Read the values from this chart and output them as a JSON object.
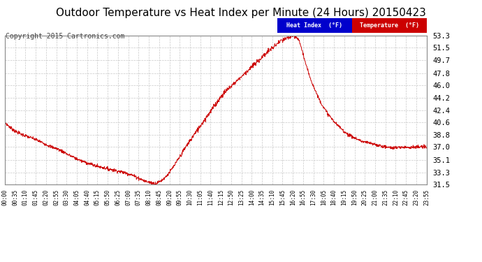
{
  "title": "Outdoor Temperature vs Heat Index per Minute (24 Hours) 20150423",
  "copyright": "Copyright 2015 Cartronics.com",
  "ylabel_right_ticks": [
    31.5,
    33.3,
    35.1,
    37.0,
    38.8,
    40.6,
    42.4,
    44.2,
    46.0,
    47.8,
    49.7,
    51.5,
    53.3
  ],
  "ymin": 31.5,
  "ymax": 53.3,
  "legend_heat_index_color": "#0000cc",
  "legend_temperature_color": "#cc0000",
  "line_color": "#cc0000",
  "background_color": "#ffffff",
  "grid_color": "#c8c8c8",
  "title_fontsize": 11,
  "copyright_fontsize": 7,
  "x_tick_labels": [
    "00:00",
    "00:35",
    "01:10",
    "01:45",
    "02:20",
    "02:55",
    "03:30",
    "04:05",
    "04:40",
    "05:15",
    "05:50",
    "06:25",
    "07:00",
    "07:35",
    "08:10",
    "08:45",
    "09:20",
    "09:55",
    "10:30",
    "11:05",
    "11:40",
    "12:15",
    "12:50",
    "13:25",
    "14:00",
    "14:35",
    "15:10",
    "15:45",
    "16:20",
    "16:55",
    "17:30",
    "18:05",
    "18:40",
    "19:15",
    "19:50",
    "20:25",
    "21:00",
    "21:35",
    "22:10",
    "22:45",
    "23:20",
    "23:55"
  ],
  "num_points": 1440,
  "curve_data": [
    [
      0,
      40.6
    ],
    [
      20,
      39.8
    ],
    [
      40,
      39.2
    ],
    [
      60,
      38.8
    ],
    [
      80,
      38.5
    ],
    [
      100,
      38.2
    ],
    [
      115,
      37.9
    ],
    [
      130,
      37.6
    ],
    [
      145,
      37.3
    ],
    [
      160,
      37.0
    ],
    [
      175,
      36.8
    ],
    [
      190,
      36.5
    ],
    [
      205,
      36.2
    ],
    [
      215,
      35.9
    ],
    [
      225,
      35.7
    ],
    [
      240,
      35.4
    ],
    [
      255,
      35.1
    ],
    [
      265,
      34.9
    ],
    [
      275,
      34.8
    ],
    [
      285,
      34.6
    ],
    [
      295,
      34.5
    ],
    [
      305,
      34.3
    ],
    [
      315,
      34.2
    ],
    [
      325,
      34.1
    ],
    [
      335,
      34.0
    ],
    [
      345,
      33.9
    ],
    [
      355,
      33.8
    ],
    [
      365,
      33.7
    ],
    [
      375,
      33.6
    ],
    [
      385,
      33.5
    ],
    [
      395,
      33.4
    ],
    [
      405,
      33.3
    ],
    [
      415,
      33.2
    ],
    [
      420,
      33.1
    ],
    [
      430,
      33.0
    ],
    [
      440,
      32.8
    ],
    [
      450,
      32.6
    ],
    [
      460,
      32.4
    ],
    [
      470,
      32.2
    ],
    [
      480,
      32.0
    ],
    [
      490,
      31.9
    ],
    [
      500,
      31.8
    ],
    [
      510,
      31.7
    ],
    [
      515,
      31.7
    ],
    [
      520,
      31.8
    ],
    [
      530,
      32.0
    ],
    [
      540,
      32.3
    ],
    [
      550,
      32.7
    ],
    [
      560,
      33.2
    ],
    [
      570,
      33.8
    ],
    [
      580,
      34.4
    ],
    [
      590,
      35.1
    ],
    [
      600,
      35.8
    ],
    [
      610,
      36.5
    ],
    [
      620,
      37.2
    ],
    [
      630,
      37.8
    ],
    [
      640,
      38.4
    ],
    [
      645,
      38.8
    ],
    [
      650,
      39.0
    ],
    [
      655,
      39.3
    ],
    [
      660,
      39.6
    ],
    [
      665,
      40.0
    ],
    [
      670,
      40.3
    ],
    [
      675,
      40.6
    ],
    [
      680,
      40.9
    ],
    [
      685,
      41.2
    ],
    [
      690,
      41.5
    ],
    [
      695,
      41.8
    ],
    [
      700,
      42.1
    ],
    [
      705,
      42.4
    ],
    [
      710,
      42.7
    ],
    [
      715,
      43.0
    ],
    [
      720,
      43.3
    ],
    [
      725,
      43.6
    ],
    [
      730,
      43.9
    ],
    [
      735,
      44.2
    ],
    [
      740,
      44.5
    ],
    [
      745,
      44.7
    ],
    [
      750,
      45.0
    ],
    [
      755,
      45.2
    ],
    [
      760,
      45.4
    ],
    [
      765,
      45.6
    ],
    [
      770,
      45.8
    ],
    [
      775,
      46.0
    ],
    [
      780,
      46.2
    ],
    [
      785,
      46.4
    ],
    [
      790,
      46.6
    ],
    [
      795,
      46.8
    ],
    [
      800,
      47.0
    ],
    [
      805,
      47.2
    ],
    [
      810,
      47.4
    ],
    [
      815,
      47.6
    ],
    [
      820,
      47.8
    ],
    [
      825,
      48.0
    ],
    [
      830,
      48.2
    ],
    [
      835,
      48.4
    ],
    [
      840,
      48.6
    ],
    [
      845,
      48.8
    ],
    [
      850,
      49.0
    ],
    [
      855,
      49.2
    ],
    [
      860,
      49.4
    ],
    [
      865,
      49.6
    ],
    [
      870,
      49.8
    ],
    [
      875,
      50.0
    ],
    [
      880,
      50.2
    ],
    [
      885,
      50.4
    ],
    [
      890,
      50.6
    ],
    [
      895,
      50.8
    ],
    [
      900,
      51.0
    ],
    [
      905,
      51.2
    ],
    [
      910,
      51.4
    ],
    [
      915,
      51.5
    ],
    [
      920,
      51.7
    ],
    [
      925,
      51.9
    ],
    [
      930,
      52.1
    ],
    [
      935,
      52.3
    ],
    [
      940,
      52.4
    ],
    [
      945,
      52.5
    ],
    [
      950,
      52.6
    ],
    [
      955,
      52.7
    ],
    [
      960,
      52.8
    ],
    [
      965,
      52.9
    ],
    [
      970,
      53.0
    ],
    [
      975,
      53.1
    ],
    [
      980,
      53.15
    ],
    [
      985,
      53.2
    ],
    [
      990,
      53.1
    ],
    [
      995,
      53.0
    ],
    [
      1000,
      52.8
    ],
    [
      1005,
      52.4
    ],
    [
      1010,
      51.8
    ],
    [
      1015,
      51.0
    ],
    [
      1020,
      50.2
    ],
    [
      1025,
      49.4
    ],
    [
      1030,
      48.6
    ],
    [
      1035,
      48.0
    ],
    [
      1040,
      47.4
    ],
    [
      1045,
      46.8
    ],
    [
      1050,
      46.2
    ],
    [
      1055,
      45.7
    ],
    [
      1060,
      45.2
    ],
    [
      1065,
      44.7
    ],
    [
      1070,
      44.2
    ],
    [
      1075,
      43.8
    ],
    [
      1080,
      43.4
    ],
    [
      1085,
      43.0
    ],
    [
      1090,
      42.6
    ],
    [
      1095,
      42.3
    ],
    [
      1100,
      42.0
    ],
    [
      1110,
      41.4
    ],
    [
      1120,
      40.9
    ],
    [
      1130,
      40.4
    ],
    [
      1140,
      40.0
    ],
    [
      1150,
      39.6
    ],
    [
      1160,
      39.2
    ],
    [
      1170,
      38.9
    ],
    [
      1180,
      38.6
    ],
    [
      1190,
      38.4
    ],
    [
      1200,
      38.2
    ],
    [
      1210,
      38.0
    ],
    [
      1220,
      37.8
    ],
    [
      1230,
      37.7
    ],
    [
      1240,
      37.6
    ],
    [
      1250,
      37.5
    ],
    [
      1260,
      37.4
    ],
    [
      1270,
      37.3
    ],
    [
      1280,
      37.2
    ],
    [
      1290,
      37.1
    ],
    [
      1300,
      37.0
    ],
    [
      1320,
      36.9
    ],
    [
      1340,
      36.9
    ],
    [
      1360,
      37.0
    ],
    [
      1380,
      37.0
    ],
    [
      1400,
      37.0
    ],
    [
      1420,
      37.0
    ],
    [
      1439,
      37.0
    ]
  ]
}
